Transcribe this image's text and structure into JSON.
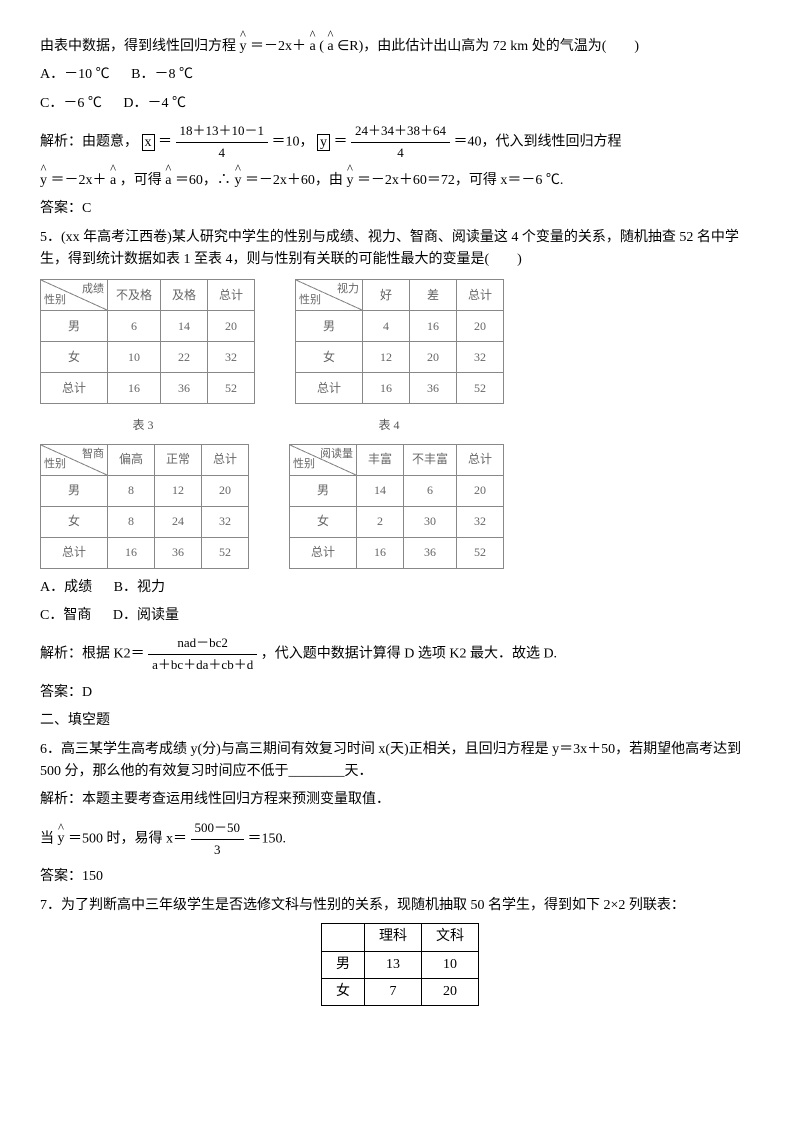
{
  "q4": {
    "line1_pre": "由表中数据，得到线性回归方程",
    "line1_mid1": "＝－2x＋",
    "line1_mid2": "(",
    "line1_mid3": "∈R)，由此估计出山高为 72 km 处的气温为(　　)",
    "optA": "A．－10 ℃",
    "optB": "B．－8 ℃",
    "optC": "C．－6 ℃",
    "optD": "D．－4 ℃",
    "sol_pre": "解析：由题意，",
    "xbar": "x",
    "eq1": "＝",
    "frac1_num": "18＋13＋10－1",
    "frac1_den": "4",
    "eq10": "＝10，",
    "ybar": "y",
    "frac2_num": "24＋34＋38＋64",
    "frac2_den": "4",
    "eq40": "＝40，代入到线性回归方程",
    "sol2_a": "＝－2x＋",
    "sol2_b": "，可得",
    "sol2_c": "＝60，∴",
    "sol2_d": "＝－2x＋60，由",
    "sol2_e": "＝－2x＋60＝72，可得 x＝－6 ℃.",
    "ans": "答案：C"
  },
  "q5": {
    "stem1": "5．(xx 年高考江西卷)某人研究中学生的性别与成绩、视力、智商、阅读量这 4 个变量的关系，随机抽查 52 名中学生，得到统计数据如表 1 至表 4，则与性别有关联的可能性最大的变量是(　　)",
    "tables": {
      "t1": {
        "header_attr": "成绩",
        "header_sex": "性别",
        "cols": [
          "不及格",
          "及格",
          "总计"
        ],
        "rows": [
          [
            "男",
            "6",
            "14",
            "20"
          ],
          [
            "女",
            "10",
            "22",
            "32"
          ],
          [
            "总计",
            "16",
            "36",
            "52"
          ]
        ]
      },
      "t2": {
        "header_attr": "视力",
        "header_sex": "性别",
        "cols": [
          "好",
          "差",
          "总计"
        ],
        "rows": [
          [
            "男",
            "4",
            "16",
            "20"
          ],
          [
            "女",
            "12",
            "20",
            "32"
          ],
          [
            "总计",
            "16",
            "36",
            "52"
          ]
        ]
      },
      "t3": {
        "caption": "表 3",
        "header_attr": "智商",
        "header_sex": "性别",
        "cols": [
          "偏高",
          "正常",
          "总计"
        ],
        "rows": [
          [
            "男",
            "8",
            "12",
            "20"
          ],
          [
            "女",
            "8",
            "24",
            "32"
          ],
          [
            "总计",
            "16",
            "36",
            "52"
          ]
        ]
      },
      "t4": {
        "caption": "表 4",
        "header_attr": "阅读量",
        "header_sex": "性别",
        "cols": [
          "丰富",
          "不丰富",
          "总计"
        ],
        "rows": [
          [
            "男",
            "14",
            "6",
            "20"
          ],
          [
            "女",
            "2",
            "30",
            "32"
          ],
          [
            "总计",
            "16",
            "36",
            "52"
          ]
        ]
      }
    },
    "optA": "A．成绩",
    "optB": "B．视力",
    "optC": "C．智商",
    "optD": "D．阅读量",
    "sol_pre": "解析：根据 K2＝",
    "formula_num": "nad－bc2",
    "formula_den": "a＋bc＋da＋cb＋d",
    "sol_post": "，代入题中数据计算得 D 选项 K2 最大．故选 D.",
    "ans": "答案：D"
  },
  "sec2": "二、填空题",
  "q6": {
    "stem": "6．高三某学生高考成绩 y(分)与高三期间有效复习时间 x(天)正相关，且回归方程是 y＝3x＋50，若期望他高考达到 500 分，那么他的有效复习时间应不低于________天．",
    "sol": "解析：本题主要考查运用线性回归方程来预测变量取值．",
    "calc_pre": "当",
    "calc_mid": "＝500 时，易得 x＝",
    "frac_num": "500－50",
    "frac_den": "3",
    "calc_post": "＝150.",
    "ans": "答案：150"
  },
  "q7": {
    "stem": "7．为了判断高中三年级学生是否选修文科与性别的关系，现随机抽取 50 名学生，得到如下 2×2 列联表：",
    "table": {
      "cols": [
        "",
        "理科",
        "文科"
      ],
      "rows": [
        [
          "男",
          "13",
          "10"
        ],
        [
          "女",
          "7",
          "20"
        ]
      ]
    }
  }
}
